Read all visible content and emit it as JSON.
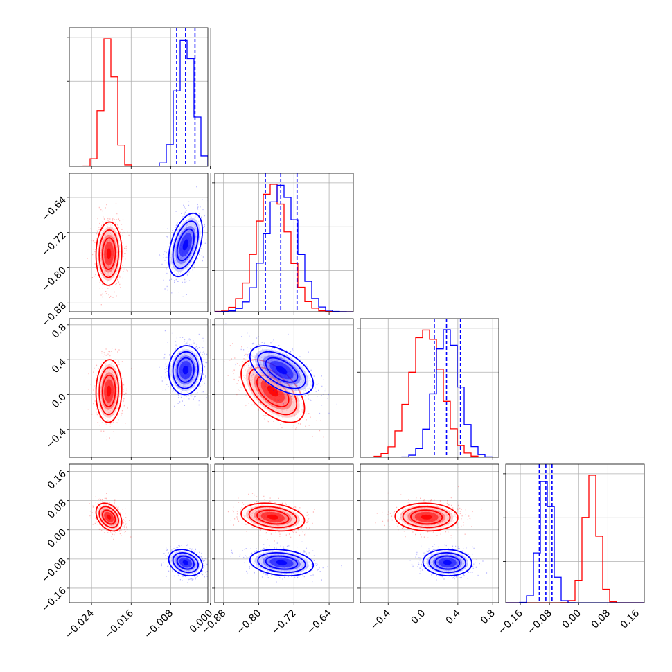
{
  "chart_data": {
    "type": "corner",
    "colors": {
      "red": "#ff0000",
      "blue": "#0000ff"
    },
    "series": [
      {
        "name": "",
        "color": "#ff0000",
        "mean": [
          -0.0205,
          -0.768,
          0.04,
          0.035
        ],
        "std": [
          0.0013,
          0.036,
          0.18,
          0.019
        ]
      },
      {
        "name": "",
        "color": "#0000ff",
        "mean": [
          -0.005,
          -0.748,
          0.28,
          -0.09
        ],
        "std": [
          0.0017,
          0.036,
          0.14,
          0.018
        ]
      }
    ],
    "quantiles": [
      [
        -0.0068,
        -0.005,
        -0.0031
      ],
      [
        -0.785,
        -0.75,
        -0.713
      ],
      [
        0.13,
        0.27,
        0.43
      ],
      [
        -0.108,
        -0.09,
        -0.073
      ]
    ],
    "params": [
      {
        "range": [
          -0.0285,
          -0.0005
        ],
        "ticks": [
          "−0.024",
          "−0.016",
          "−0.008",
          "0.000"
        ],
        "tick_values": [
          -0.024,
          -0.016,
          -0.008,
          0.0
        ]
      },
      {
        "range": [
          -0.9,
          -0.585
        ],
        "ticks": [
          "−0.88",
          "−0.80",
          "−0.72",
          "−0.64"
        ],
        "tick_values": [
          -0.88,
          -0.8,
          -0.72,
          -0.64
        ]
      },
      {
        "range": [
          -0.72,
          0.87
        ],
        "ticks": [
          "−0.4",
          "0.0",
          "0.4",
          "0.8"
        ],
        "tick_values": [
          -0.4,
          0.0,
          0.4,
          0.8
        ]
      },
      {
        "range": [
          -0.2,
          0.18
        ],
        "ticks": [
          "−0.16",
          "−0.08",
          "0.00",
          "0.08",
          "0.16"
        ],
        "tick_values": [
          -0.16,
          -0.08,
          0.0,
          0.08,
          0.16
        ]
      }
    ],
    "grid": true,
    "xlabel": "",
    "ylabel": ""
  }
}
